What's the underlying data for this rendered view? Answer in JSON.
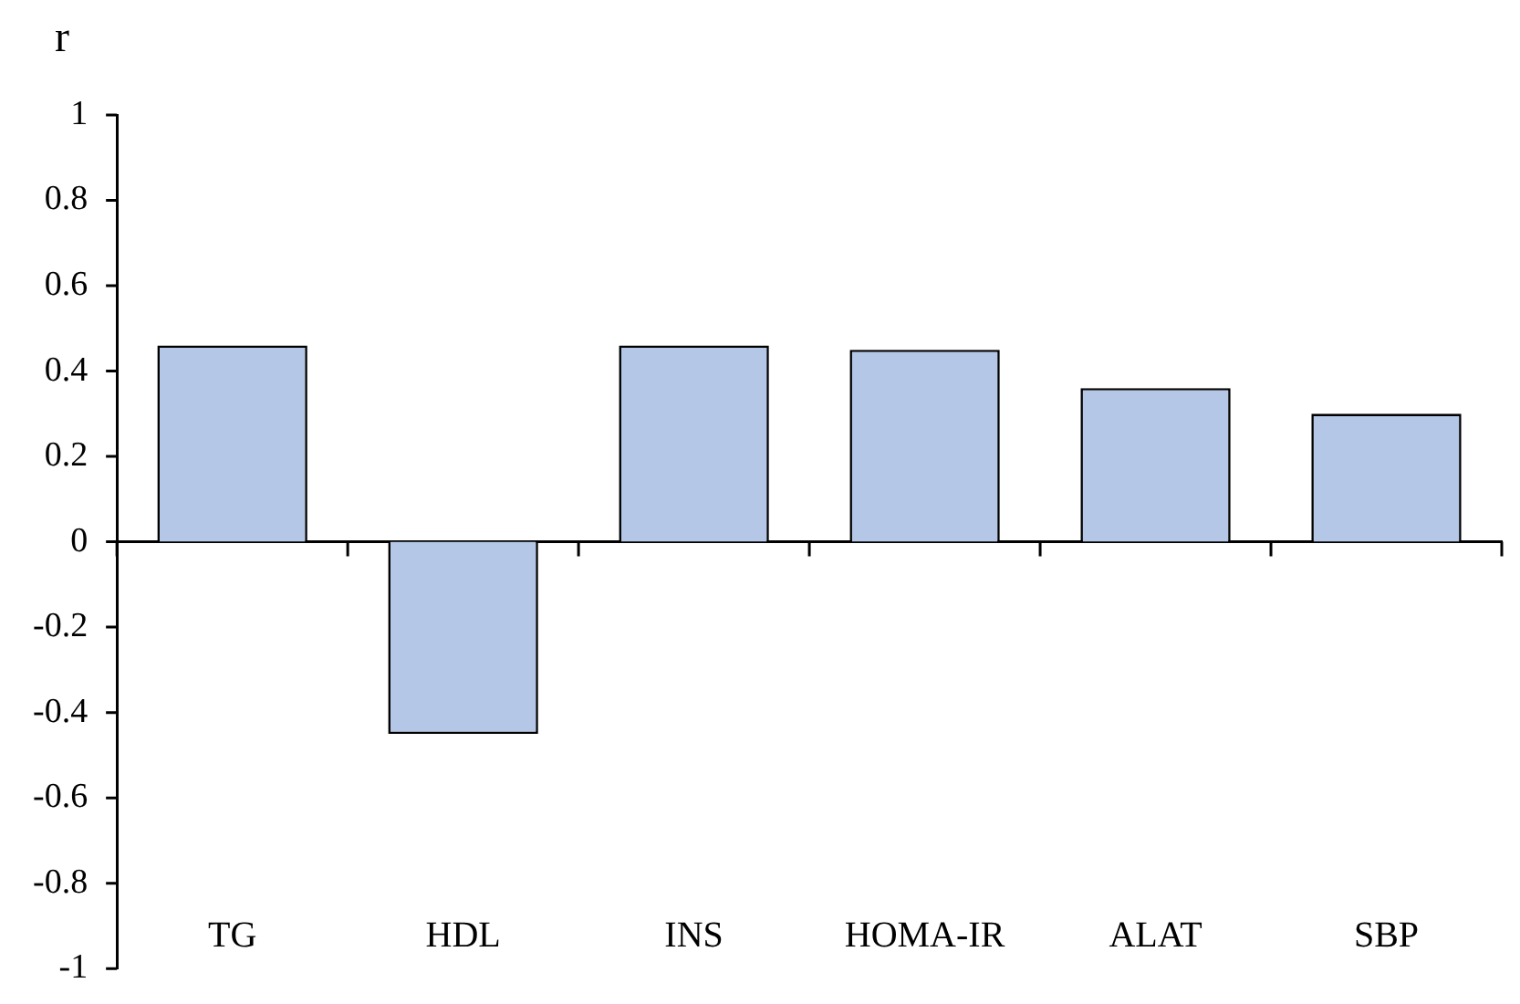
{
  "chart_data": {
    "type": "bar",
    "ylabel": "r",
    "categories": [
      "TG",
      "HDL",
      "INS",
      "HOMA-IR",
      "ALAT",
      "SBP"
    ],
    "values": [
      0.46,
      -0.45,
      0.46,
      0.45,
      0.36,
      0.3
    ],
    "color": "#b4c7e7",
    "ylim": [
      -1,
      1
    ],
    "yticks": [
      -1,
      -0.8,
      -0.6,
      -0.4,
      -0.2,
      0,
      0.2,
      0.4,
      0.6,
      0.8,
      1
    ],
    "legend": false
  }
}
